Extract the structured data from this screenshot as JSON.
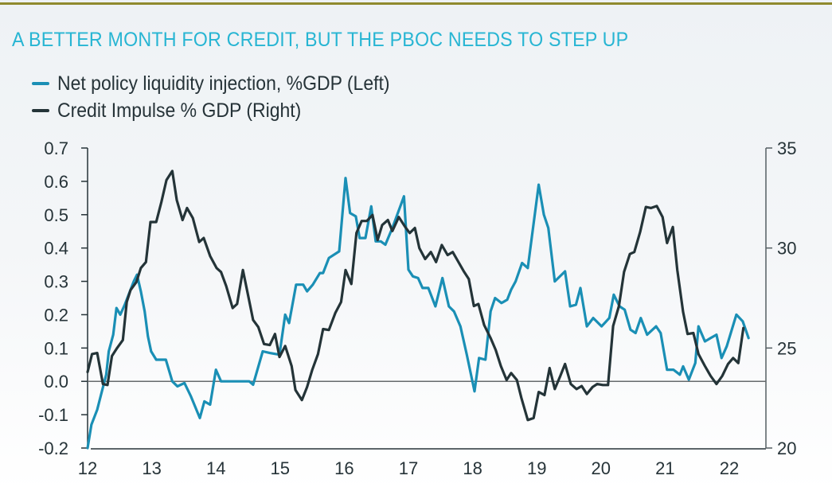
{
  "chart_data": {
    "type": "line",
    "title": "A BETTER MONTH FOR CREDIT, BUT THE PBOC NEEDS TO STEP UP",
    "xlabel": "",
    "ylabel_left": "",
    "ylabel_right": "",
    "xlim": [
      12,
      22.9
    ],
    "x_ticks": [
      "12",
      "13",
      "14",
      "15",
      "16",
      "17",
      "18",
      "19",
      "20",
      "21",
      "22"
    ],
    "x_tick_values": [
      12,
      13,
      14,
      15,
      16,
      17,
      18,
      19,
      20,
      21,
      22
    ],
    "ylim_left": [
      -0.2,
      0.7
    ],
    "y_ticks_left": [
      "0.7",
      "0.6",
      "0.5",
      "0.4",
      "0.3",
      "0.2",
      "0.1",
      "0.0",
      "-0.1",
      "-0.2"
    ],
    "y_tick_values_left": [
      0.7,
      0.6,
      0.5,
      0.4,
      0.3,
      0.2,
      0.1,
      0.0,
      -0.1,
      -0.2
    ],
    "ylim_right": [
      20,
      35
    ],
    "y_ticks_right": [
      "35",
      "30",
      "25",
      "20"
    ],
    "y_tick_values_right": [
      35,
      30,
      25,
      20
    ],
    "zero_line": 0.0,
    "grid": false,
    "legend_position": "top-left",
    "series": [
      {
        "name": "Net policy liquidity injection, %GDP (Left)",
        "axis": "left",
        "color": "#1a8fb5",
        "x": [
          12.0,
          12.06,
          12.15,
          12.21,
          12.29,
          12.33,
          12.4,
          12.45,
          12.51,
          12.58,
          12.66,
          12.72,
          12.77,
          12.83,
          12.89,
          12.94,
          12.99,
          13.07,
          13.22,
          13.32,
          13.4,
          13.51,
          13.61,
          13.75,
          13.82,
          13.91,
          14.0,
          14.08,
          14.36,
          14.52,
          14.58,
          14.73,
          14.84,
          14.99,
          15.08,
          15.14,
          15.25,
          15.36,
          15.42,
          15.51,
          15.62,
          15.67,
          15.76,
          15.92,
          16.02,
          16.09,
          16.18,
          16.24,
          16.33,
          16.42,
          16.49,
          16.57,
          16.64,
          16.75,
          16.93,
          17.0,
          17.07,
          17.15,
          17.22,
          17.31,
          17.42,
          17.53,
          17.63,
          17.71,
          17.81,
          17.91,
          18.03,
          18.1,
          18.2,
          18.28,
          18.35,
          18.45,
          18.54,
          18.6,
          18.67,
          18.77,
          18.86,
          19.03,
          19.11,
          19.18,
          19.28,
          19.44,
          19.52,
          19.61,
          19.68,
          19.78,
          19.88,
          20.01,
          20.13,
          20.2,
          20.29,
          20.37,
          20.46,
          20.54,
          20.62,
          20.72,
          20.86,
          20.93,
          21.03,
          21.13,
          21.23,
          21.28,
          21.37,
          21.47,
          21.52,
          21.62,
          21.71,
          21.8,
          21.88,
          21.96,
          22.11,
          22.21,
          22.3
        ],
        "values": [
          -0.2,
          -0.13,
          -0.085,
          -0.04,
          0.02,
          0.09,
          0.14,
          0.22,
          0.2,
          0.23,
          0.27,
          0.3,
          0.32,
          0.27,
          0.21,
          0.135,
          0.09,
          0.065,
          0.065,
          0.0,
          -0.015,
          -0.005,
          -0.045,
          -0.11,
          -0.06,
          -0.07,
          0.035,
          0.0,
          0.0,
          0.0,
          -0.01,
          0.09,
          0.085,
          0.08,
          0.2,
          0.175,
          0.29,
          0.29,
          0.27,
          0.29,
          0.325,
          0.325,
          0.37,
          0.39,
          0.61,
          0.505,
          0.495,
          0.43,
          0.43,
          0.525,
          0.42,
          0.42,
          0.41,
          0.46,
          0.555,
          0.335,
          0.315,
          0.31,
          0.28,
          0.28,
          0.225,
          0.31,
          0.225,
          0.21,
          0.165,
          0.08,
          -0.03,
          0.07,
          0.065,
          0.21,
          0.25,
          0.235,
          0.245,
          0.275,
          0.3,
          0.355,
          0.34,
          0.59,
          0.5,
          0.46,
          0.3,
          0.33,
          0.225,
          0.23,
          0.28,
          0.165,
          0.19,
          0.165,
          0.19,
          0.26,
          0.225,
          0.215,
          0.155,
          0.145,
          0.19,
          0.14,
          0.165,
          0.145,
          0.035,
          0.035,
          0.02,
          0.045,
          0.005,
          0.055,
          0.165,
          0.12,
          0.13,
          0.14,
          0.07,
          0.105,
          0.2,
          0.18,
          0.13
        ]
      },
      {
        "name": "Credit Impulse % GDP (Right)",
        "axis": "right",
        "color": "#243438",
        "x": [
          12.0,
          12.07,
          12.15,
          12.24,
          12.31,
          12.38,
          12.46,
          12.55,
          12.61,
          12.67,
          12.76,
          12.83,
          12.91,
          12.98,
          13.07,
          13.15,
          13.23,
          13.32,
          13.39,
          13.48,
          13.55,
          13.64,
          13.74,
          13.81,
          13.91,
          14.01,
          14.08,
          14.16,
          14.26,
          14.33,
          14.42,
          14.51,
          14.58,
          14.66,
          14.75,
          14.84,
          14.92,
          14.99,
          15.08,
          15.18,
          15.24,
          15.34,
          15.42,
          15.5,
          15.59,
          15.67,
          15.76,
          15.86,
          15.95,
          16.02,
          16.11,
          16.19,
          16.27,
          16.35,
          16.44,
          16.52,
          16.59,
          16.68,
          16.75,
          16.85,
          16.95,
          17.02,
          17.1,
          17.17,
          17.26,
          17.35,
          17.43,
          17.52,
          17.61,
          17.69,
          17.77,
          17.86,
          17.94,
          18.02,
          18.09,
          18.18,
          18.28,
          18.36,
          18.44,
          18.53,
          18.6,
          18.69,
          18.76,
          18.86,
          18.95,
          19.03,
          19.12,
          19.2,
          19.28,
          19.36,
          19.44,
          19.53,
          19.62,
          19.7,
          19.78,
          19.87,
          19.94,
          20.03,
          20.11,
          20.19,
          20.28,
          20.36,
          20.45,
          20.52,
          20.61,
          20.7,
          20.78,
          20.87,
          20.96,
          21.03,
          21.12,
          21.19,
          21.28,
          21.35,
          21.44,
          21.52,
          21.62,
          21.71,
          21.8,
          21.89,
          21.98,
          22.06,
          22.14,
          22.22
        ],
        "values": [
          23.8,
          24.7,
          24.75,
          23.2,
          23.15,
          24.6,
          25.0,
          25.4,
          27.3,
          27.9,
          28.3,
          29.0,
          29.3,
          31.3,
          31.3,
          32.3,
          33.4,
          33.85,
          32.4,
          31.4,
          32.0,
          31.5,
          30.3,
          30.5,
          29.6,
          29.0,
          28.8,
          28.1,
          27.0,
          27.2,
          28.9,
          27.5,
          26.4,
          26.05,
          25.2,
          25.15,
          25.7,
          24.55,
          25.1,
          24.1,
          22.9,
          22.4,
          23.05,
          23.9,
          24.7,
          25.95,
          25.9,
          26.75,
          27.3,
          28.9,
          28.2,
          30.75,
          31.35,
          31.35,
          31.65,
          30.4,
          31.15,
          31.4,
          30.85,
          31.55,
          31.05,
          30.75,
          31.0,
          30.0,
          29.45,
          29.8,
          29.3,
          30.15,
          29.65,
          29.8,
          29.35,
          28.85,
          28.45,
          27.1,
          27.2,
          26.15,
          25.5,
          24.9,
          24.1,
          23.4,
          23.75,
          23.4,
          22.5,
          21.4,
          21.5,
          22.8,
          22.65,
          24.0,
          22.95,
          23.55,
          24.2,
          23.2,
          22.95,
          23.1,
          22.7,
          23.05,
          23.2,
          23.15,
          23.15,
          26.1,
          27.1,
          28.8,
          29.7,
          29.8,
          30.8,
          32.05,
          32.0,
          32.1,
          31.55,
          30.25,
          31.05,
          28.9,
          26.8,
          25.7,
          25.75,
          24.7,
          24.1,
          23.6,
          23.2,
          23.6,
          24.2,
          24.5,
          24.25,
          26.0
        ]
      }
    ]
  },
  "header": {
    "title": "A BETTER MONTH FOR CREDIT, BUT THE PBOC NEEDS TO STEP UP"
  },
  "legend": {
    "items": [
      {
        "label": "Net policy liquidity injection, %GDP (Left)",
        "color": "#1a8fb5"
      },
      {
        "label": "Credit Impulse % GDP (Right)",
        "color": "#243438"
      }
    ]
  },
  "colors": {
    "accent_bar": "#8f8a2e",
    "title": "#27b5d3",
    "axis": "#263338"
  }
}
